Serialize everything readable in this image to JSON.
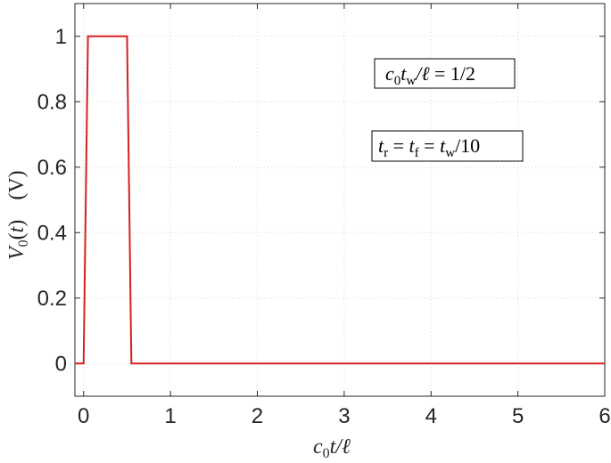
{
  "chart_data": {
    "type": "line",
    "title": "",
    "xlabel": "c0t/ℓ",
    "ylabel": "V0(t)   (V)",
    "xlim": [
      -0.1,
      6
    ],
    "ylim": [
      -0.1,
      1.1
    ],
    "xticks": [
      0,
      1,
      2,
      3,
      4,
      5,
      6
    ],
    "yticks": [
      0,
      0.2,
      0.4,
      0.6,
      0.8,
      1
    ],
    "xtick_labels": [
      "0",
      "1",
      "2",
      "3",
      "4",
      "5",
      "6"
    ],
    "ytick_labels": [
      "0",
      "0.2",
      "0.4",
      "0.6",
      "0.8",
      "1"
    ],
    "grid": true,
    "series": [
      {
        "color": "#d62020",
        "x": [
          -0.1,
          0,
          0.05,
          0.5,
          0.55,
          6
        ],
        "y": [
          0,
          0,
          1,
          1,
          0,
          0
        ]
      }
    ],
    "annotations": [
      {
        "text": "c0tw/ℓ = 1/2"
      },
      {
        "text": "tr = tf = tw/10"
      }
    ]
  }
}
